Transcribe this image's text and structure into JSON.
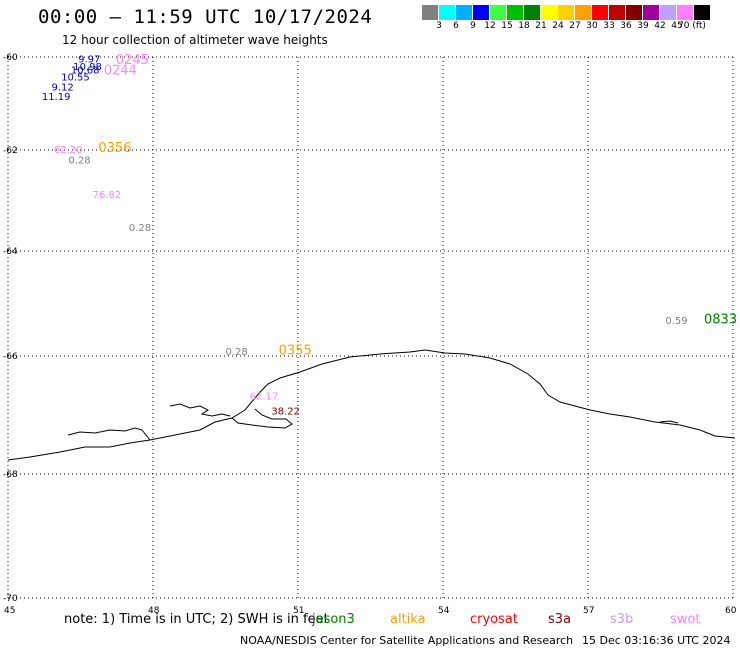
{
  "header": {
    "title": "00:00 – 11:59 UTC 10/17/2024",
    "subtitle": "12 hour collection of altimeter wave heights"
  },
  "colorbar": {
    "colors": [
      "#808080",
      "#00ffff",
      "#00b0ff",
      "#0000ff",
      "#40ff40",
      "#00c000",
      "#008000",
      "#ffff00",
      "#ffd000",
      "#ffa000",
      "#ff0000",
      "#c00000",
      "#800000",
      "#a000a0",
      "#c0a0ff",
      "#ff80ff",
      "#000000"
    ],
    "labels": [
      "3",
      "6",
      "9",
      "12",
      "15",
      "18",
      "21",
      "24",
      "27",
      "30",
      "33",
      "36",
      "39",
      "42",
      "45",
      "70 (ft)"
    ]
  },
  "axes": {
    "lon_ticks": [
      "45",
      "48",
      "51",
      "54",
      "57",
      "60"
    ],
    "lat_ticks": [
      "-60",
      "-62",
      "-64",
      "-66",
      "-68",
      "-70"
    ]
  },
  "points": [
    {
      "text": "9.97",
      "color": "#0000c0",
      "lon": 46.45,
      "lat": -60.12
    },
    {
      "text": "10.98",
      "color": "#0000c0",
      "lon": 46.35,
      "lat": -60.28
    },
    {
      "text": "10.55",
      "color": "#0000c0",
      "lon": 46.1,
      "lat": -60.5
    },
    {
      "text": "9.12",
      "color": "#0000c0",
      "lon": 45.9,
      "lat": -60.72
    },
    {
      "text": "11.19",
      "color": "#0000c0",
      "lon": 45.7,
      "lat": -60.93
    },
    {
      "text": "10.68",
      "color": "#0000c0",
      "lon": 46.3,
      "lat": -60.36
    },
    {
      "text": "62.20",
      "color": "#ff80ff",
      "lon": 45.95,
      "lat": -62.06
    },
    {
      "text": "0.28",
      "color": "#808080",
      "lon": 46.25,
      "lat": -62.27
    },
    {
      "text": "76.82",
      "color": "#ff80ff",
      "lon": 46.75,
      "lat": -62.95
    },
    {
      "text": "0.28",
      "color": "#808080",
      "lon": 47.5,
      "lat": -63.6
    },
    {
      "text": "0.28",
      "color": "#808080",
      "lon": 49.5,
      "lat": -65.98
    },
    {
      "text": "62.17",
      "color": "#ff80ff",
      "lon": 50.0,
      "lat": -66.74
    },
    {
      "text": "38.22",
      "color": "#800000",
      "lon": 50.45,
      "lat": -66.99
    },
    {
      "text": "0.59",
      "color": "#808080",
      "lon": 58.6,
      "lat": -65.39
    }
  ],
  "time_labels": [
    {
      "text": "0245",
      "color": "#ff80ff",
      "lon": 47.23,
      "lat": -60.15
    },
    {
      "text": "0244",
      "color": "#ff80ff",
      "lon": 46.98,
      "lat": -60.38
    },
    {
      "text": "0356",
      "color": "#ffa000",
      "lon": 46.87,
      "lat": -62.04
    },
    {
      "text": "0355",
      "color": "#ffa000",
      "lon": 50.6,
      "lat": -65.97
    },
    {
      "text": "0833",
      "color": "#008000",
      "lon": 59.4,
      "lat": -65.38
    }
  ],
  "footer": {
    "note": "note: 1) Time is in UTC; 2) SWH is in feet",
    "satellites": [
      {
        "name": "jason3",
        "color": "#008000"
      },
      {
        "name": "altika",
        "color": "#ffa000"
      },
      {
        "name": "cryosat",
        "color": "#ff0000"
      },
      {
        "name": "s3a",
        "color": "#800000"
      },
      {
        "name": "s3b",
        "color": "#c0a0ff"
      },
      {
        "name": "swot",
        "color": "#ff80ff"
      }
    ],
    "credit": "NOAA/NESDIS Center for Satellite Applications and Research",
    "timestamp": "15 Dec 03:16:36 UTC 2024"
  }
}
